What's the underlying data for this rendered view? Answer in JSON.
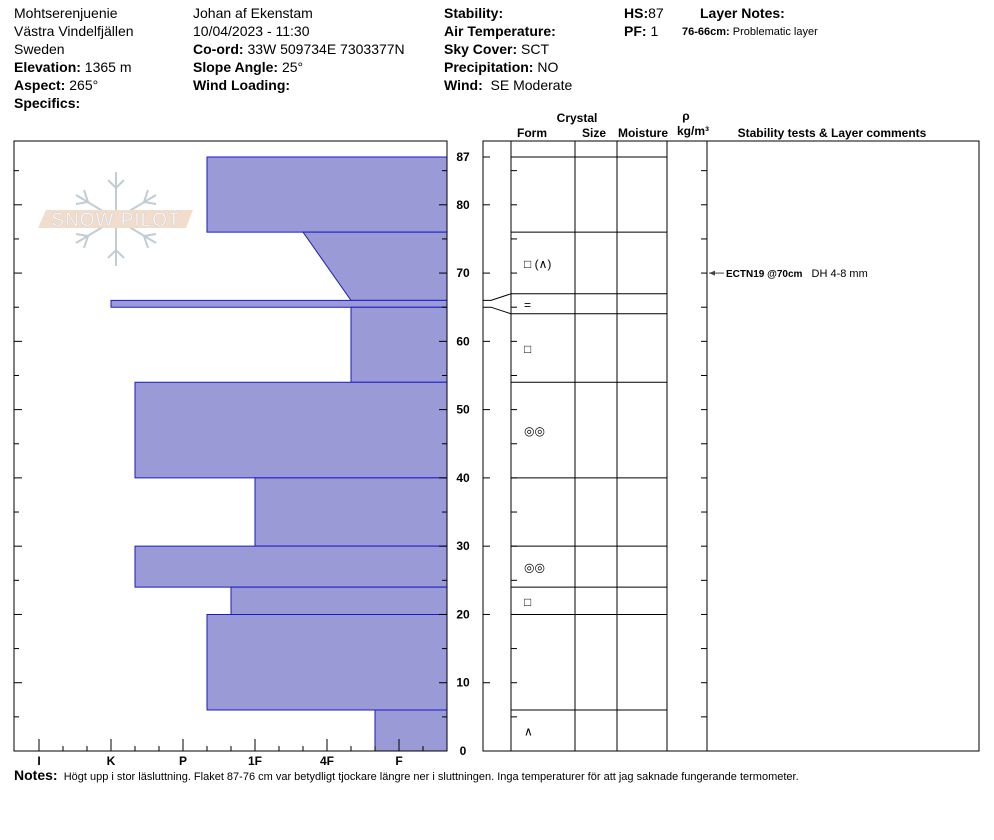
{
  "header": {
    "location": "Mohtserenjuenie",
    "region": "Västra Vindelfjällen",
    "country": "Sweden",
    "elevation_label": "Elevation:",
    "elevation": "1365 m",
    "aspect_label": "Aspect:",
    "aspect": "265°",
    "specifics_label": "Specifics:",
    "observer": "Johan af Ekenstam",
    "datetime": "10/04/2023 - 11:30",
    "coord_label": "Co-ord:",
    "coord": "33W 509734E 7303377N",
    "slope_label": "Slope Angle:",
    "slope": "25°",
    "wind_loading_label": "Wind Loading:",
    "stability_label": "Stability:",
    "air_temp_label": "Air Temperature:",
    "sky_label": "Sky Cover:",
    "sky": "SCT",
    "precip_label": "Precipitation:",
    "precip": "NO",
    "wind_label": "Wind:",
    "wind": "SE Moderate",
    "hs_label": "HS:",
    "hs": "87",
    "pf_label": "PF:",
    "pf": "1",
    "layer_notes_label": "Layer Notes:",
    "layer_note_range": "76-66cm:",
    "layer_note_text": "Problematic layer"
  },
  "logo_text": "SNOW PILOT",
  "table_headers": {
    "crystal": "Crystal",
    "form": "Form",
    "size": "Size",
    "moisture": "Moisture",
    "rho": "ρ",
    "density_unit": "kg/m³",
    "comments": "Stability tests & Layer comments"
  },
  "notes": {
    "label": "Notes:",
    "text": "Högt upp i stor läsluttning. Flaket 87-76 cm var betydligt tjockare längre ner i sluttningen. Inga temperaturer för att jag saknade fungerande termometer."
  },
  "colors": {
    "bar_fill": "#9a9ad6",
    "bar_stroke": "#1a1ac8"
  },
  "chart_data": {
    "type": "bar",
    "orientation": "horizontal-hardness-profile",
    "ylim": [
      0,
      87
    ],
    "y_ticks": [
      "0",
      "10",
      "20",
      "30",
      "40",
      "50",
      "60",
      "70",
      "80",
      "87"
    ],
    "x_tick_labels": [
      "I",
      "K",
      "P",
      "1F",
      "4F",
      "F"
    ],
    "hardness_scale": [
      "F-",
      "F",
      "F+",
      "4F-",
      "4F",
      "4F+",
      "1F-",
      "1F",
      "1F+",
      "P-",
      "P",
      "P+",
      "K-",
      "K",
      "K+",
      "I-",
      "I"
    ],
    "layers": [
      {
        "top": 87,
        "bottom": 76,
        "hardness_top": "P-",
        "hardness_bottom": "P-",
        "form": ""
      },
      {
        "top": 76,
        "bottom": 66,
        "hardness_top": "4F+",
        "hardness_bottom": "4F-",
        "form": "□ (∧)"
      },
      {
        "top": 66,
        "bottom": 65,
        "hardness_top": "K",
        "hardness_bottom": "K",
        "form": "="
      },
      {
        "top": 65,
        "bottom": 54,
        "hardness_top": "4F-",
        "hardness_bottom": "4F-",
        "form": "□"
      },
      {
        "top": 54,
        "bottom": 40,
        "hardness_top": "K-",
        "hardness_bottom": "K-",
        "form": "◎◎"
      },
      {
        "top": 40,
        "bottom": 30,
        "hardness_top": "1F",
        "hardness_bottom": "1F",
        "form": ""
      },
      {
        "top": 30,
        "bottom": 24,
        "hardness_top": "K-",
        "hardness_bottom": "K-",
        "form": "◎◎"
      },
      {
        "top": 24,
        "bottom": 20,
        "hardness_top": "1F+",
        "hardness_bottom": "1F+",
        "form": "□"
      },
      {
        "top": 20,
        "bottom": 6,
        "hardness_top": "P-",
        "hardness_bottom": "P-",
        "form": ""
      },
      {
        "top": 6,
        "bottom": 0,
        "hardness_top": "F+",
        "hardness_bottom": "F+",
        "form": "∧"
      }
    ],
    "stability_tests": [
      {
        "depth": 70,
        "result": "ECTN19 @70cm",
        "comment": "DH 4-8 mm"
      }
    ]
  }
}
